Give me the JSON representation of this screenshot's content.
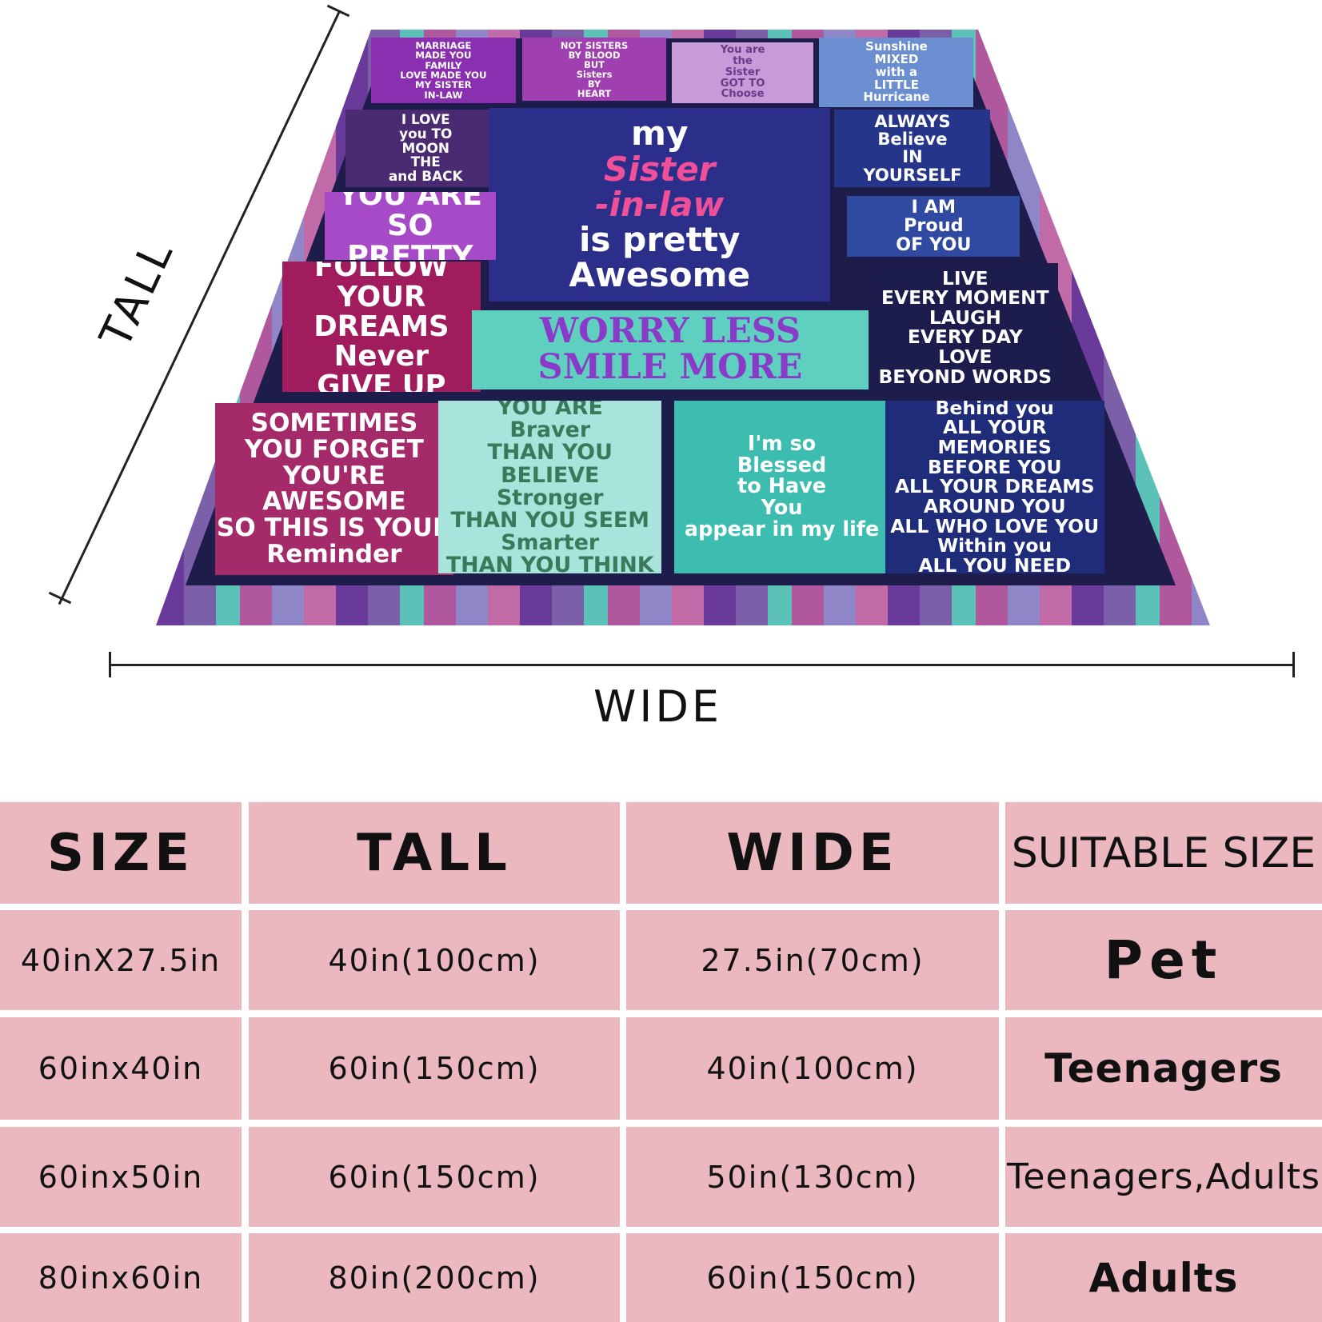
{
  "blanket": {
    "tiles": [
      {
        "lines": [
          "MARRIAGE",
          "MADE YOU",
          "FAMILY",
          "LOVE MADE YOU",
          "MY SISTER",
          "IN-LAW"
        ]
      },
      {
        "lines": [
          "NOT SISTERS",
          "BY BLOOD",
          "BUT",
          "Sisters",
          "BY",
          "HEART"
        ]
      },
      {
        "lines": [
          "You are",
          "the",
          "Sister",
          "GOT TO",
          "Choose"
        ]
      },
      {
        "lines": [
          "Sunshine",
          "MIXED",
          "with a",
          "LITTLE",
          "Hurricane"
        ]
      },
      {
        "lines": [
          "I LOVE",
          "you TO",
          "MOON",
          "THE",
          "and BACK"
        ]
      },
      {
        "lines": [
          "my",
          "Sister",
          "-in-law",
          "is pretty",
          "Awesome"
        ]
      },
      {
        "lines": [
          "ALWAYS",
          "Believe",
          "IN",
          "YOURSELF"
        ]
      },
      {
        "lines": [
          "YOU ARE",
          "SO PRETTY"
        ]
      },
      {
        "lines": [
          "I AM",
          "Proud",
          "OF YOU"
        ]
      },
      {
        "lines": [
          "FOLLOW YOUR",
          "DREAMS",
          "Never",
          "GIVE UP"
        ]
      },
      {
        "lines": [
          "WORRY LESS",
          "SMILE MORE"
        ]
      },
      {
        "lines": [
          "LIVE",
          "EVERY MOMENT",
          "LAUGH",
          "EVERY DAY",
          "LOVE",
          "BEYOND WORDS"
        ]
      },
      {
        "lines": [
          "SOMETIMES",
          "YOU FORGET",
          "YOU'RE",
          "AWESOME",
          "SO THIS IS YOUR",
          "Reminder"
        ]
      },
      {
        "lines": [
          "YOU ARE",
          "Braver",
          "THAN YOU BELIEVE",
          "Stronger",
          "THAN YOU SEEM",
          "Smarter",
          "THAN YOU THINK"
        ]
      },
      {
        "lines": [
          "I'm so",
          "Blessed",
          "to Have",
          "You",
          "appear in my life"
        ]
      },
      {
        "lines": [
          "Behind you",
          "ALL YOUR MEMORIES",
          "BEFORE YOU",
          "ALL YOUR DREAMS",
          "AROUND YOU",
          "ALL WHO LOVE YOU",
          "Within you",
          "ALL YOU NEED"
        ]
      }
    ]
  },
  "dimension_labels": {
    "tall": "TALL",
    "wide": "WIDE"
  },
  "table": {
    "headers": [
      "SIZE",
      "TALL",
      "WIDE",
      "SUITABLE SIZE"
    ],
    "rows": [
      [
        "40inX27.5in",
        "40in(100cm)",
        "27.5in(70cm)",
        "Pet"
      ],
      [
        "60inx40in",
        "60in(150cm)",
        "40in(100cm)",
        "Teenagers"
      ],
      [
        "60inx50in",
        "60in(150cm)",
        "50in(130cm)",
        "Teenagers,Adults"
      ],
      [
        "80inx60in",
        "80in(200cm)",
        "60in(150cm)",
        "Adults"
      ]
    ]
  },
  "colors": {
    "table_cell": "#ecb8c0",
    "blanket_border": "#1e1c4a",
    "accent_pink": "#f0509a",
    "accent_teal": "#5fd0c0"
  }
}
